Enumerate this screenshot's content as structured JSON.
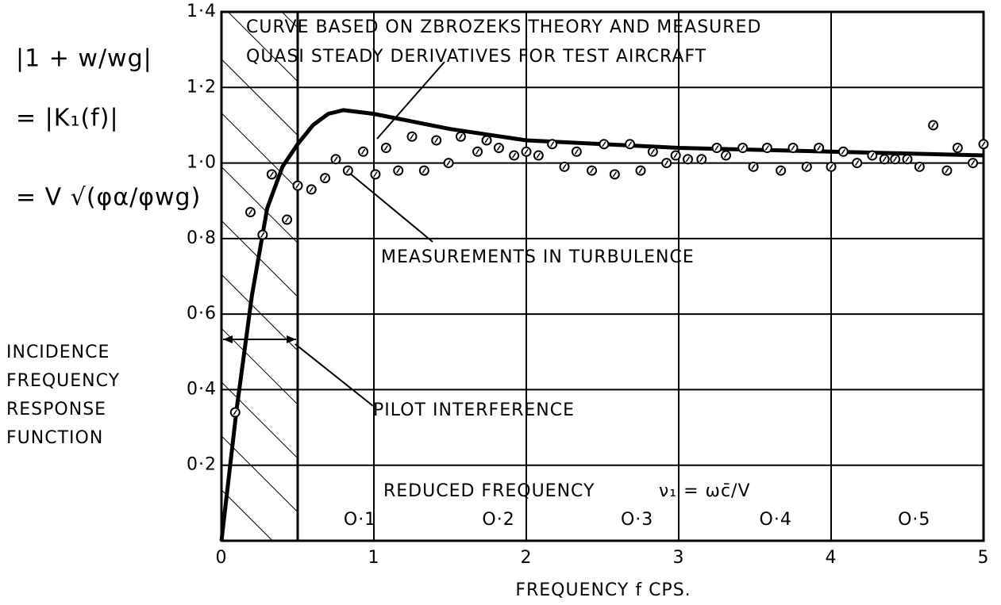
{
  "chart_data": {
    "type": "scatter_line",
    "annotations": {
      "curve_label": [
        "CURVE BASED ON ZBROZEKS THEORY AND MEASURED",
        "QUASI STEADY DERIVATIVES FOR TEST AIRCRAFT"
      ],
      "measurement_label": "MEASUREMENTS IN TURBULENCE",
      "pilot_label": "PILOT INTERFERENCE",
      "reduced_frequency_label": "REDUCED FREQUENCY",
      "reduced_frequency_formula": "ν₁ = ωc̄/V",
      "y_formula": [
        "|1 + w/wg|",
        "= |K₁(f)|",
        "= V √(φα/φwg)"
      ]
    },
    "xlabel": "FREQUENCY  f  CPS.",
    "ylabel": [
      "INCIDENCE",
      "FREQUENCY",
      "RESPONSE",
      "FUNCTION"
    ],
    "xlim": [
      0,
      5
    ],
    "ylim": [
      0,
      1.4
    ],
    "xticks": [
      0,
      1,
      2,
      3,
      4,
      5
    ],
    "yticks": [
      {
        "value": 0.2,
        "label": "0·2"
      },
      {
        "value": 0.4,
        "label": "0·4"
      },
      {
        "value": 0.6,
        "label": "0·6"
      },
      {
        "value": 0.8,
        "label": "0·8"
      },
      {
        "value": 1.0,
        "label": "1·0"
      },
      {
        "value": 1.2,
        "label": "1·2"
      },
      {
        "value": 1.4,
        "label": "1·4"
      }
    ],
    "x2lim": [
      0,
      0.55
    ],
    "x2ticks": [
      {
        "value": 0.1,
        "label": "O·1"
      },
      {
        "value": 0.2,
        "label": "O·2"
      },
      {
        "value": 0.3,
        "label": "O·3"
      },
      {
        "value": 0.4,
        "label": "O·4"
      },
      {
        "value": 0.5,
        "label": "O·5"
      }
    ],
    "shaded_xrange": [
      0,
      0.5
    ],
    "grid": true,
    "curve": {
      "color": "#000000",
      "x": [
        0,
        0.1,
        0.2,
        0.3,
        0.4,
        0.5,
        0.6,
        0.7,
        0.8,
        1.0,
        1.25,
        1.5,
        2,
        2.5,
        3,
        3.5,
        4,
        4.5,
        5
      ],
      "values": [
        0,
        0.35,
        0.65,
        0.88,
        0.99,
        1.05,
        1.1,
        1.13,
        1.14,
        1.13,
        1.11,
        1.09,
        1.06,
        1.05,
        1.04,
        1.035,
        1.03,
        1.025,
        1.02
      ]
    },
    "points": {
      "color": "#000000",
      "x": [
        0.09,
        0.19,
        0.27,
        0.33,
        0.43,
        0.5,
        0.59,
        0.68,
        0.75,
        0.83,
        0.93,
        1.01,
        1.08,
        1.16,
        1.25,
        1.33,
        1.41,
        1.49,
        1.57,
        1.68,
        1.74,
        1.82,
        1.92,
        2.0,
        2.08,
        2.17,
        2.25,
        2.33,
        2.43,
        2.51,
        2.58,
        2.68,
        2.75,
        2.83,
        2.92,
        2.98,
        3.06,
        3.15,
        3.25,
        3.31,
        3.42,
        3.49,
        3.58,
        3.67,
        3.75,
        3.84,
        3.92,
        4.0,
        4.08,
        4.17,
        4.27,
        4.35,
        4.42,
        4.5,
        4.58,
        4.67,
        4.76,
        4.83,
        4.93,
        5.0
      ],
      "values": [
        0.34,
        0.87,
        0.81,
        0.97,
        0.85,
        0.94,
        0.93,
        0.96,
        1.01,
        0.98,
        1.03,
        0.97,
        1.04,
        0.98,
        1.07,
        0.98,
        1.06,
        1.0,
        1.07,
        1.03,
        1.06,
        1.04,
        1.02,
        1.03,
        1.02,
        1.05,
        0.99,
        1.03,
        0.98,
        1.05,
        0.97,
        1.05,
        0.98,
        1.03,
        1.0,
        1.02,
        1.01,
        1.01,
        1.04,
        1.02,
        1.04,
        0.99,
        1.04,
        0.98,
        1.04,
        0.99,
        1.04,
        0.99,
        1.03,
        1.0,
        1.02,
        1.01,
        1.01,
        1.01,
        0.99,
        1.1,
        0.98,
        1.04,
        1.0,
        1.05
      ]
    }
  }
}
